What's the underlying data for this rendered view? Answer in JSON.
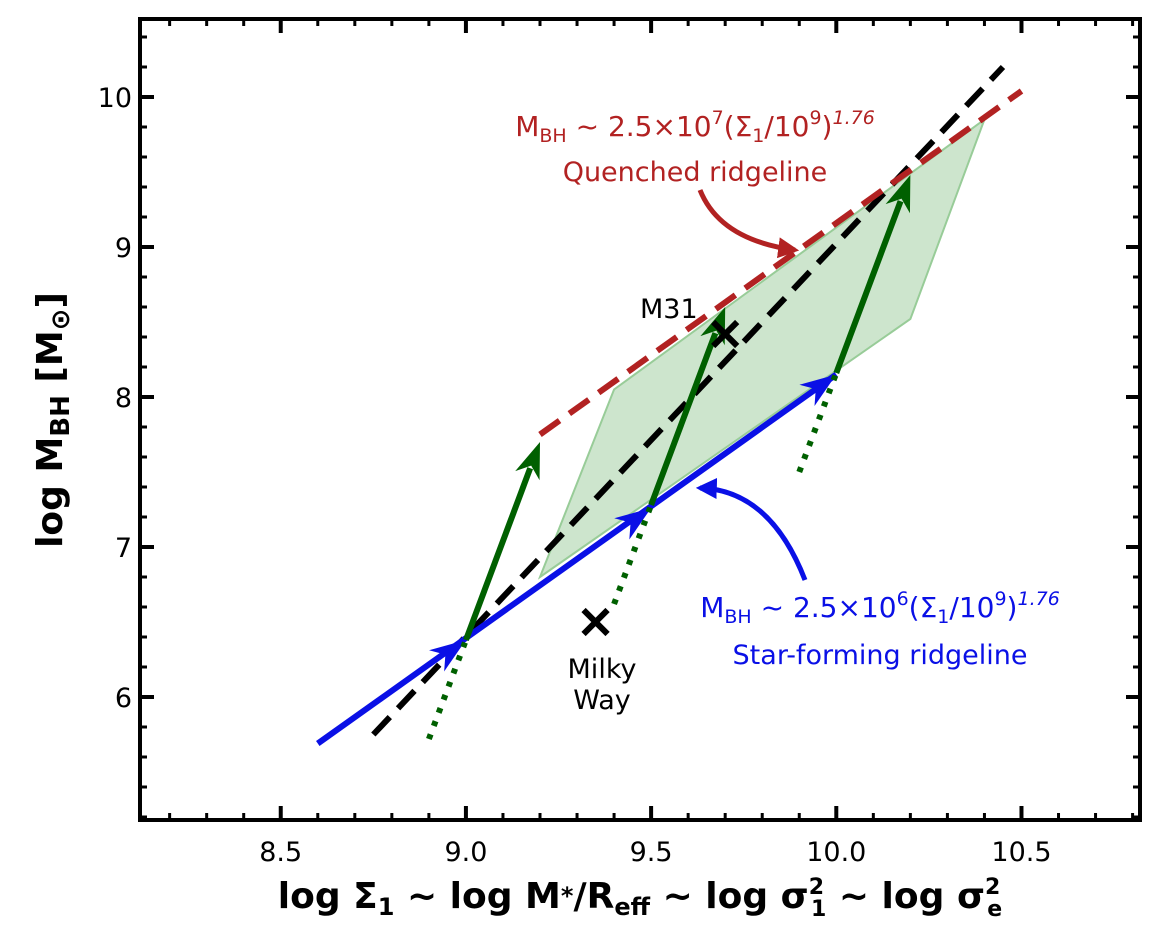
{
  "chart_data": {
    "type": "line",
    "xlim": [
      8.12,
      10.82
    ],
    "ylim": [
      5.18,
      10.52
    ],
    "xticks": [
      8.5,
      9.0,
      9.5,
      10.0,
      10.5
    ],
    "yticks": [
      6,
      7,
      8,
      9,
      10
    ],
    "xtick_labels": [
      "8.5",
      "9.0",
      "9.5",
      "10.0",
      "10.5"
    ],
    "ytick_labels": [
      "6",
      "7",
      "8",
      "9",
      "10"
    ],
    "xlabel": {
      "t1": "log ",
      "sigma": "Σ",
      "sub1": "1",
      "t2": " ~ log M",
      "star": "*",
      "t3": "/R",
      "eff": "eff",
      "t4": " ~ log ",
      "sig1": "σ",
      "sq1": "2",
      "s1": "1",
      "t5": " ~ log ",
      "sig2": "σ",
      "sq2": "2",
      "se": "e"
    },
    "ylabel": {
      "t1": "log M",
      "sub": "BH",
      "t2": " [M",
      "sun": "⊙",
      "t3": "]"
    },
    "colors": {
      "star_forming": "#0a10e6",
      "quenched": "#b22222",
      "evolution": "#006000",
      "fill": "#c8e2c8",
      "fill_edge": "#98cc98",
      "fit": "#000000"
    },
    "series": [
      {
        "name": "Star-forming ridgeline",
        "style": "solid-blue",
        "x": [
          8.6,
          10.0
        ],
        "y": [
          5.69,
          8.15
        ]
      },
      {
        "name": "Quenched ridgeline",
        "style": "dashed-red",
        "x": [
          9.2,
          10.5
        ],
        "y": [
          7.75,
          10.04
        ]
      },
      {
        "name": "Overall fit",
        "style": "dashed-black",
        "x": [
          8.75,
          10.45
        ],
        "y": [
          5.75,
          10.2
        ]
      }
    ],
    "evolution_tracks": [
      {
        "from": [
          8.9,
          5.72
        ],
        "via": [
          9.0,
          6.38
        ],
        "to": [
          9.2,
          7.7
        ]
      },
      {
        "from": [
          9.4,
          6.62
        ],
        "via": [
          9.5,
          7.28
        ],
        "to": [
          9.7,
          8.6
        ]
      },
      {
        "from": [
          9.9,
          7.5
        ],
        "via": [
          10.0,
          8.16
        ],
        "to": [
          10.2,
          9.48
        ]
      }
    ],
    "blue_arrow_heads": [
      [
        9.0,
        6.38
      ],
      [
        9.5,
        7.26
      ],
      [
        10.0,
        8.15
      ]
    ],
    "shaded_region": [
      [
        9.2,
        6.8
      ],
      [
        9.4,
        8.05
      ],
      [
        10.4,
        9.85
      ],
      [
        10.2,
        8.52
      ]
    ],
    "points": [
      {
        "name": "M31",
        "x": 9.7,
        "y": 8.42
      },
      {
        "name": "Milky Way",
        "x": 9.35,
        "y": 6.5
      }
    ],
    "annotations": {
      "m31": "M31",
      "milky_way_1": "Milky",
      "milky_way_2": "Way",
      "quenched_formula": {
        "m": "M",
        "sub": "BH",
        "rest1": " ~ 2.5×10",
        "exp": "7",
        "rest2": "(Σ",
        "s1": "1",
        "rest3": "/10",
        "e9": "9",
        "rest4": ")",
        "power": "1.76"
      },
      "quenched_label": "Quenched ridgeline",
      "sf_formula": {
        "m": "M",
        "sub": "BH",
        "rest1": " ~ 2.5×10",
        "exp": "6",
        "rest2": "(Σ",
        "s1": "1",
        "rest3": "/10",
        "e9": "9",
        "rest4": ")",
        "power": "1.76"
      },
      "sf_label": "Star-forming ridgeline"
    }
  }
}
